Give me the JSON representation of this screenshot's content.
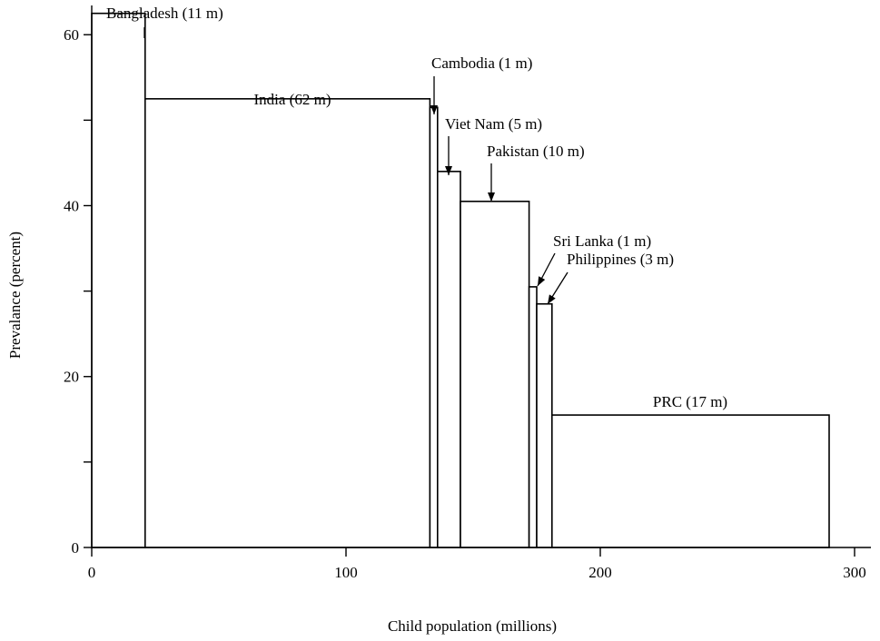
{
  "chart_data": {
    "type": "bar",
    "subtype": "variable-width (Marimekko) bars; bar width = child population, bar height = prevalence",
    "title": "",
    "xlabel": "Child population (millions)",
    "ylabel": "Prevalance   (percent)",
    "xlim": [
      0,
      300
    ],
    "ylim": [
      0,
      63
    ],
    "x_ticks": [
      0,
      100,
      200,
      300
    ],
    "y_ticks": [
      0,
      20,
      40,
      60
    ],
    "y_minor_ticks": [
      10,
      30,
      50
    ],
    "grid": false,
    "legend": "none",
    "bars": [
      {
        "label": "Bangladesh (11 m)",
        "x_start": 0,
        "x_end": 21,
        "value": 62.5
      },
      {
        "label": "India (62 m)",
        "x_start": 21,
        "x_end": 133,
        "value": 52.5
      },
      {
        "label": "Cambodia (1 m)",
        "x_start": 133,
        "x_end": 136,
        "value": 51.5
      },
      {
        "label": "Viet Nam (5 m)",
        "x_start": 136,
        "x_end": 145,
        "value": 44.0
      },
      {
        "label": "Pakistan (10 m)",
        "x_start": 145,
        "x_end": 172,
        "value": 40.5
      },
      {
        "label": "Sri Lanka (1 m)",
        "x_start": 172,
        "x_end": 175,
        "value": 30.5
      },
      {
        "label": "Philippines (3 m)",
        "x_start": 175,
        "x_end": 181,
        "value": 28.5
      },
      {
        "label": "PRC (17 m)",
        "x_start": 181,
        "x_end": 290,
        "value": 15.5
      }
    ]
  }
}
